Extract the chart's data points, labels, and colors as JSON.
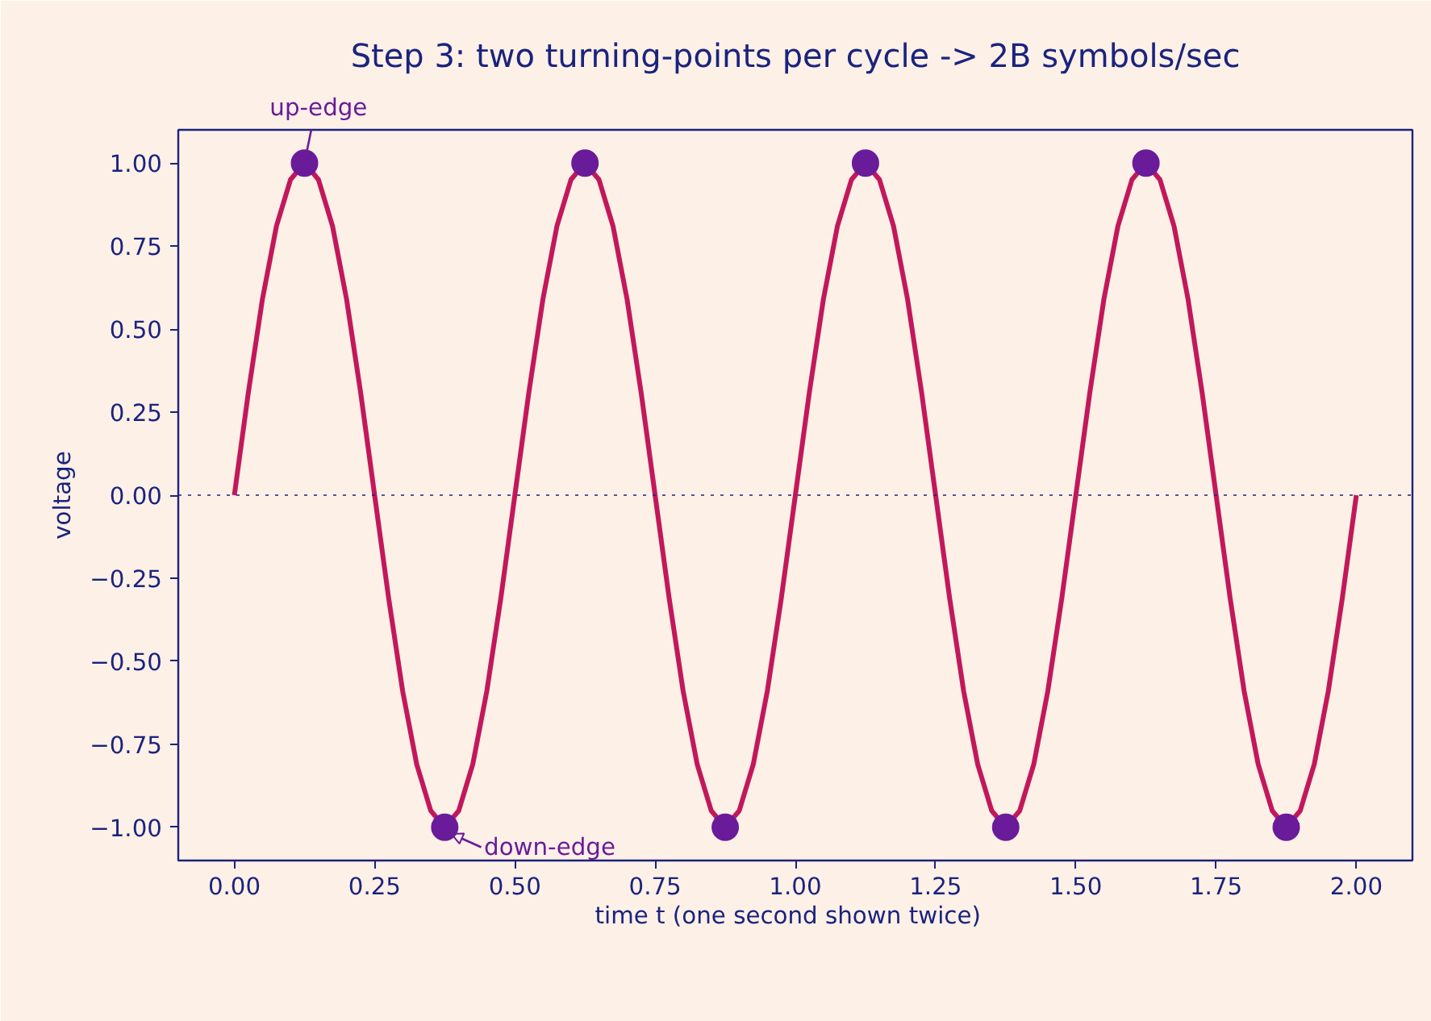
{
  "chart_data": {
    "type": "line",
    "title": "Step 3: two turning-points per cycle -> 2B symbols/sec",
    "xlabel": "time  t  (one second shown twice)",
    "ylabel": "voltage",
    "series": [
      {
        "type": "line",
        "color": "#c2185b",
        "marker": "none",
        "line_style": "solid",
        "x": [
          0,
          0.025,
          0.05,
          0.075,
          0.1,
          0.125,
          0.15,
          0.175,
          0.2,
          0.225,
          0.25,
          0.275,
          0.3,
          0.325,
          0.35,
          0.375,
          0.4,
          0.425,
          0.45,
          0.475,
          0.5,
          0.525,
          0.55,
          0.575,
          0.6,
          0.625,
          0.65,
          0.675,
          0.7,
          0.725,
          0.75,
          0.775,
          0.8,
          0.825,
          0.85,
          0.875,
          0.9,
          0.925,
          0.95,
          0.975,
          1,
          1.025,
          1.05,
          1.075,
          1.1,
          1.125,
          1.15,
          1.175,
          1.2,
          1.225,
          1.25,
          1.275,
          1.3,
          1.325,
          1.35,
          1.375,
          1.4,
          1.425,
          1.45,
          1.475,
          1.5,
          1.525,
          1.55,
          1.575,
          1.6,
          1.625,
          1.65,
          1.675,
          1.7,
          1.725,
          1.75,
          1.775,
          1.8,
          1.825,
          1.85,
          1.875,
          1.9,
          1.925,
          1.95,
          1.975,
          2
        ],
        "values": [
          0,
          0.31,
          0.59,
          0.81,
          0.95,
          1,
          0.95,
          0.81,
          0.59,
          0.31,
          0,
          -0.31,
          -0.59,
          -0.81,
          -0.95,
          -1,
          -0.95,
          -0.81,
          -0.59,
          -0.31,
          0,
          0.31,
          0.59,
          0.81,
          0.95,
          1,
          0.95,
          0.81,
          0.59,
          0.31,
          0,
          -0.31,
          -0.59,
          -0.81,
          -0.95,
          -1,
          -0.95,
          -0.81,
          -0.59,
          -0.31,
          0,
          0.31,
          0.59,
          0.81,
          0.95,
          1,
          0.95,
          0.81,
          0.59,
          0.31,
          0,
          -0.31,
          -0.59,
          -0.81,
          -0.95,
          -1,
          -0.95,
          -0.81,
          -0.59,
          -0.31,
          0,
          0.31,
          0.59,
          0.81,
          0.95,
          1,
          0.95,
          0.81,
          0.59,
          0.31,
          0,
          -0.31,
          -0.59,
          -0.81,
          -0.95,
          -1,
          -0.95,
          -0.81,
          -0.59,
          -0.31,
          0
        ]
      },
      {
        "type": "scatter",
        "color": "#6a1b9a",
        "marker": "circle",
        "x": [
          0.125,
          0.375,
          0.625,
          0.875,
          1.125,
          1.375,
          1.625,
          1.875
        ],
        "values": [
          1,
          -1,
          1,
          -1,
          1,
          -1,
          1,
          -1
        ]
      }
    ],
    "xlim": [
      -0.1,
      2.1
    ],
    "ylim": [
      -1.1,
      1.1
    ],
    "xticks": [
      {
        "value": 0,
        "label": "0.00"
      },
      {
        "value": 0.25,
        "label": "0.25"
      },
      {
        "value": 0.5,
        "label": "0.50"
      },
      {
        "value": 0.75,
        "label": "0.75"
      },
      {
        "value": 1,
        "label": "1.00"
      },
      {
        "value": 1.25,
        "label": "1.25"
      },
      {
        "value": 1.5,
        "label": "1.50"
      },
      {
        "value": 1.75,
        "label": "1.75"
      },
      {
        "value": 2,
        "label": "2.00"
      }
    ],
    "yticks": [
      {
        "value": -1,
        "label": "−1.00"
      },
      {
        "value": -0.75,
        "label": "−0.75"
      },
      {
        "value": -0.5,
        "label": "−0.50"
      },
      {
        "value": -0.25,
        "label": "−0.25"
      },
      {
        "value": 0,
        "label": "0.00"
      },
      {
        "value": 0.25,
        "label": "0.25"
      },
      {
        "value": 0.5,
        "label": "0.50"
      },
      {
        "value": 0.75,
        "label": "0.75"
      },
      {
        "value": 1,
        "label": "1.00"
      }
    ],
    "grid": false,
    "ref_lines": [
      {
        "axis": "y",
        "value": 0,
        "color": "#1a237e",
        "line_style": "dotted"
      }
    ],
    "annotations": [
      {
        "text": "up-edge",
        "x": 0.125,
        "y": 1
      },
      {
        "text": "down-edge",
        "x": 0.375,
        "y": -1
      }
    ]
  }
}
